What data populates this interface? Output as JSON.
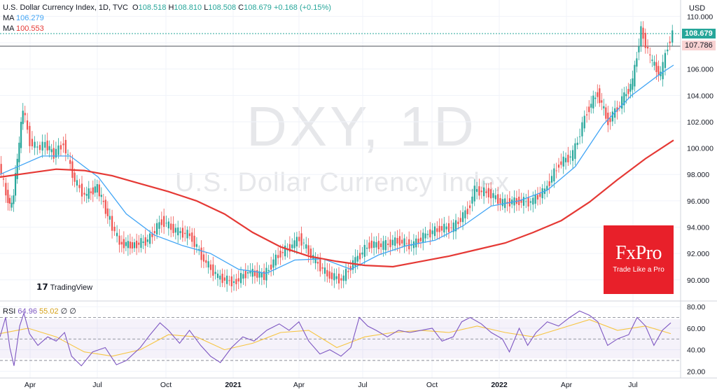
{
  "header": {
    "symbol": "U.S. Dollar Currency Index, 1D, TVC",
    "o_label": "O",
    "o": "108.518",
    "h_label": "H",
    "h": "108.810",
    "l_label": "L",
    "l": "108.508",
    "c_label": "C",
    "c": "108.679",
    "chg": "+0.168 (+0.15%)",
    "ma1_label": "MA",
    "ma1_value": "106.279",
    "ma2_label": "MA",
    "ma2_value": "100.553"
  },
  "currency_label": "USD",
  "price_tags": {
    "last": "108.679",
    "ref": "107.786"
  },
  "watermark": {
    "ticker": "DXY, 1D",
    "name": "U.S. Dollar Currency Index"
  },
  "branding": {
    "tradingview": "TradingView",
    "fxpro": "FxPro",
    "fxpro_tagline": "Trade Like a Pro"
  },
  "rsi_header": {
    "label": "RSI",
    "v1": "64.96",
    "v2": "55.02",
    "v3": "∅",
    "v4": "∅"
  },
  "colors": {
    "up": "#26a69a",
    "down": "#ef5350",
    "ma_fast": "#42a5f5",
    "ma_slow": "#e53935",
    "rsi": "#7e57c2",
    "rsi_ma": "#f6c542",
    "fxpro": "#e8202a"
  },
  "chart_data": [
    {
      "type": "line",
      "ylim": [
        88.5,
        110.5
      ],
      "y_ticks": [
        "110.000",
        "108.000",
        "106.000",
        "104.000",
        "102.000",
        "100.000",
        "98.000",
        "96.000",
        "94.000",
        "92.000",
        "90.000"
      ],
      "x_ticks": [
        "Apr",
        "Jul",
        "Oct",
        "2021",
        "Apr",
        "Jul",
        "Oct",
        "2022",
        "Apr",
        "Jul"
      ],
      "x_tick_pos": [
        43,
        139,
        237,
        333,
        427,
        518,
        617,
        713,
        809,
        904
      ],
      "x_range": [
        0,
        960
      ],
      "series": [
        {
          "values": [
            [
              0,
              98.8
            ],
            [
              10,
              96.5
            ],
            [
              18,
              95.5
            ],
            [
              26,
              99.0
            ],
            [
              34,
              103.0
            ],
            [
              44,
              100.5
            ],
            [
              55,
              100.0
            ],
            [
              66,
              100.3
            ],
            [
              78,
              99.5
            ],
            [
              92,
              100.4
            ],
            [
              108,
              97.5
            ],
            [
              122,
              96.4
            ],
            [
              140,
              97.0
            ],
            [
              158,
              94.5
            ],
            [
              172,
              92.8
            ],
            [
              190,
              92.6
            ],
            [
              212,
              93.0
            ],
            [
              232,
              94.5
            ],
            [
              252,
              93.7
            ],
            [
              272,
              93.4
            ],
            [
              292,
              91.5
            ],
            [
              312,
              90.2
            ],
            [
              335,
              89.8
            ],
            [
              355,
              90.6
            ],
            [
              378,
              90.3
            ],
            [
              398,
              91.9
            ],
            [
              418,
              92.6
            ],
            [
              428,
              93.2
            ],
            [
              448,
              91.6
            ],
            [
              468,
              90.4
            ],
            [
              488,
              90.0
            ],
            [
              508,
              91.5
            ],
            [
              528,
              92.7
            ],
            [
              548,
              92.6
            ],
            [
              568,
              93.0
            ],
            [
              588,
              92.6
            ],
            [
              608,
              93.4
            ],
            [
              628,
              93.9
            ],
            [
              648,
              94.0
            ],
            [
              668,
              95.3
            ],
            [
              678,
              96.8
            ],
            [
              698,
              96.6
            ],
            [
              718,
              95.8
            ],
            [
              738,
              96.0
            ],
            [
              758,
              95.9
            ],
            [
              778,
              96.8
            ],
            [
              798,
              98.8
            ],
            [
              818,
              99.5
            ],
            [
              838,
              102.8
            ],
            [
              853,
              104.2
            ],
            [
              868,
              102.0
            ],
            [
              888,
              103.6
            ],
            [
              903,
              105.0
            ],
            [
              915,
              109.0
            ],
            [
              928,
              106.8
            ],
            [
              943,
              105.5
            ],
            [
              953,
              107.8
            ],
            [
              960,
              108.7
            ]
          ]
        },
        {
          "name": "MA 106.279",
          "values": [
            [
              0,
              98.0
            ],
            [
              60,
              99.4
            ],
            [
              100,
              99.4
            ],
            [
              140,
              97.8
            ],
            [
              180,
              95.0
            ],
            [
              220,
              93.4
            ],
            [
              260,
              92.6
            ],
            [
              300,
              92.0
            ],
            [
              340,
              90.8
            ],
            [
              380,
              90.5
            ],
            [
              420,
              91.5
            ],
            [
              460,
              91.6
            ],
            [
              500,
              90.8
            ],
            [
              540,
              91.9
            ],
            [
              580,
              92.6
            ],
            [
              620,
              93.0
            ],
            [
              660,
              94.1
            ],
            [
              700,
              95.6
            ],
            [
              740,
              96.0
            ],
            [
              780,
              96.8
            ],
            [
              820,
              98.6
            ],
            [
              860,
              101.8
            ],
            [
              900,
              104.0
            ],
            [
              940,
              105.6
            ],
            [
              960,
              106.3
            ]
          ]
        },
        {
          "name": "MA 100.553",
          "values": [
            [
              0,
              97.8
            ],
            [
              40,
              98.1
            ],
            [
              80,
              98.4
            ],
            [
              120,
              98.3
            ],
            [
              160,
              97.9
            ],
            [
              200,
              97.3
            ],
            [
              240,
              96.7
            ],
            [
              280,
              96.0
            ],
            [
              320,
              95.0
            ],
            [
              360,
              93.6
            ],
            [
              400,
              92.5
            ],
            [
              440,
              91.8
            ],
            [
              480,
              91.4
            ],
            [
              520,
              91.1
            ],
            [
              560,
              91.0
            ],
            [
              600,
              91.4
            ],
            [
              640,
              91.8
            ],
            [
              680,
              92.3
            ],
            [
              720,
              92.8
            ],
            [
              760,
              93.6
            ],
            [
              800,
              94.5
            ],
            [
              840,
              95.9
            ],
            [
              880,
              97.6
            ],
            [
              920,
              99.2
            ],
            [
              960,
              100.6
            ]
          ]
        }
      ]
    },
    {
      "type": "line",
      "ylim": [
        15,
        84
      ],
      "y_ticks": [
        "80.00",
        "60.00",
        "40.00",
        "20.00"
      ],
      "bands": [
        30,
        70
      ],
      "x_range": [
        0,
        960
      ],
      "series": [
        {
          "name": "RSI 64.96",
          "values": [
            [
              0,
              52
            ],
            [
              8,
              70
            ],
            [
              14,
              42
            ],
            [
              20,
              25
            ],
            [
              28,
              62
            ],
            [
              34,
              74
            ],
            [
              42,
              55
            ],
            [
              54,
              44
            ],
            [
              68,
              52
            ],
            [
              80,
              48
            ],
            [
              92,
              56
            ],
            [
              102,
              34
            ],
            [
              116,
              25
            ],
            [
              132,
              38
            ],
            [
              150,
              42
            ],
            [
              166,
              26
            ],
            [
              180,
              30
            ],
            [
              200,
              42
            ],
            [
              214,
              54
            ],
            [
              228,
              65
            ],
            [
              240,
              58
            ],
            [
              256,
              46
            ],
            [
              270,
              58
            ],
            [
              286,
              44
            ],
            [
              300,
              34
            ],
            [
              314,
              28
            ],
            [
              330,
              42
            ],
            [
              346,
              52
            ],
            [
              362,
              48
            ],
            [
              380,
              58
            ],
            [
              398,
              64
            ],
            [
              412,
              58
            ],
            [
              426,
              66
            ],
            [
              440,
              48
            ],
            [
              456,
              36
            ],
            [
              470,
              40
            ],
            [
              486,
              34
            ],
            [
              500,
              42
            ],
            [
              512,
              70
            ],
            [
              524,
              62
            ],
            [
              536,
              58
            ],
            [
              552,
              52
            ],
            [
              568,
              58
            ],
            [
              584,
              56
            ],
            [
              600,
              58
            ],
            [
              616,
              60
            ],
            [
              630,
              48
            ],
            [
              646,
              52
            ],
            [
              658,
              66
            ],
            [
              670,
              70
            ],
            [
              686,
              64
            ],
            [
              700,
              56
            ],
            [
              716,
              50
            ],
            [
              726,
              38
            ],
            [
              740,
              60
            ],
            [
              752,
              44
            ],
            [
              764,
              56
            ],
            [
              780,
              66
            ],
            [
              796,
              62
            ],
            [
              812,
              70
            ],
            [
              826,
              76
            ],
            [
              840,
              72
            ],
            [
              852,
              66
            ],
            [
              866,
              44
            ],
            [
              880,
              50
            ],
            [
              896,
              54
            ],
            [
              908,
              70
            ],
            [
              920,
              62
            ],
            [
              932,
              44
            ],
            [
              944,
              58
            ],
            [
              956,
              65
            ]
          ]
        },
        {
          "name": "MA 55.02",
          "values": [
            [
              0,
              55
            ],
            [
              40,
              60
            ],
            [
              80,
              52
            ],
            [
              120,
              38
            ],
            [
              160,
              34
            ],
            [
              200,
              40
            ],
            [
              240,
              54
            ],
            [
              280,
              52
            ],
            [
              320,
              40
            ],
            [
              360,
              46
            ],
            [
              400,
              56
            ],
            [
              440,
              58
            ],
            [
              480,
              42
            ],
            [
              520,
              52
            ],
            [
              560,
              56
            ],
            [
              600,
              58
            ],
            [
              640,
              56
            ],
            [
              680,
              62
            ],
            [
              720,
              56
            ],
            [
              760,
              52
            ],
            [
              800,
              60
            ],
            [
              840,
              68
            ],
            [
              880,
              58
            ],
            [
              920,
              62
            ],
            [
              956,
              55
            ]
          ]
        }
      ]
    }
  ]
}
